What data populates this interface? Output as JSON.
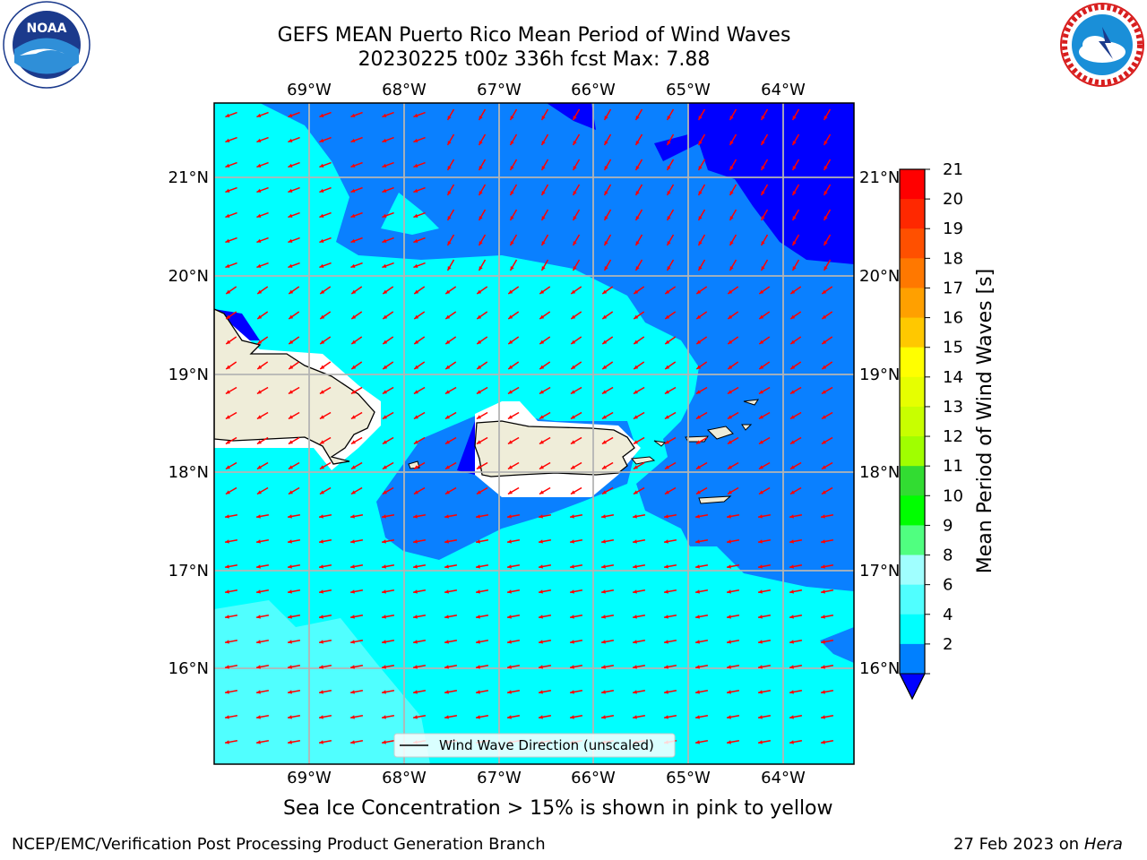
{
  "header": {
    "title_line1": "GEFS MEAN Puerto Rico Mean Period of Wind Waves",
    "title_line2": "20230225 t00z 336h fcst   Max: 7.88"
  },
  "logos": {
    "left": {
      "icon": "noaa-logo",
      "text": "NOAA",
      "ring_text": "NATIONAL OCEANIC AND ATMOSPHERIC ADMINISTRATION  U.S. DEPARTMENT OF COMMERCE"
    },
    "right": {
      "icon": "nws-logo",
      "ring_text": "NATIONAL WEATHER SERVICE"
    }
  },
  "map": {
    "lon_labels": [
      "69°W",
      "68°W",
      "67°W",
      "66°W",
      "65°W",
      "64°W"
    ],
    "lat_labels": [
      "21°N",
      "20°N",
      "19°N",
      "18°N",
      "17°N",
      "16°N"
    ],
    "legend_label": "Wind Wave Direction (unscaled)",
    "arrow_color": "#ff0000",
    "land_color": "#efedd9"
  },
  "colorbar": {
    "label": "Mean Period of Wind Waves [s]",
    "ticks": [
      "21",
      "20",
      "19",
      "18",
      "17",
      "16",
      "15",
      "14",
      "13",
      "12",
      "11",
      "10",
      "9",
      "8",
      "6",
      "4",
      "2"
    ],
    "colors": [
      "#ff0000",
      "#ff2800",
      "#ff5000",
      "#ff7800",
      "#ffa000",
      "#ffc800",
      "#ffff00",
      "#e6ff00",
      "#c8ff00",
      "#a0ff00",
      "#32dc32",
      "#00ff00",
      "#50ff80",
      "#a0ffff",
      "#50ffff",
      "#00ffff",
      "#0080ff"
    ],
    "under_color": "#0000ff"
  },
  "footer": {
    "caption": "Sea Ice Concentration > 15% is shown in pink to yellow",
    "left": "NCEP/EMC/Verification Post Processing Product Generation Branch",
    "date": "27 Feb 2023 on",
    "host": "Hera"
  }
}
